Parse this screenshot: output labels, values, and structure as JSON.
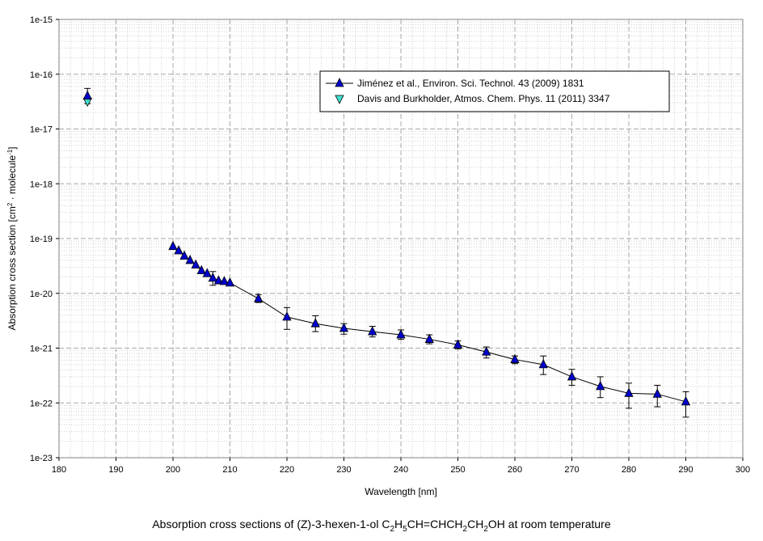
{
  "caption": {
    "prefix": "Absorption cross sections of (Z)-3-hexen-1-ol C",
    "sub1": "2",
    "p2": "H",
    "sub2": "5",
    "p3": "CH=CHCH",
    "sub3": "2",
    "p4": "CH",
    "sub4": "2",
    "p5": "OH at room temperature"
  },
  "chart_data": {
    "type": "scatter",
    "xlabel": "Wavelength [nm]",
    "ylabel_parts": [
      "Absorption cross section [cm",
      "2",
      " · molecule",
      "-1",
      "]"
    ],
    "xlim": [
      180,
      300
    ],
    "ylim": [
      1e-23,
      1e-15
    ],
    "yscale": "log",
    "grid": true,
    "legend_position": "top-right",
    "x_ticks": [
      "180",
      "190",
      "200",
      "210",
      "220",
      "230",
      "240",
      "250",
      "260",
      "270",
      "280",
      "290",
      "300"
    ],
    "y_ticks": [
      "1e-23",
      "1e-22",
      "1e-21",
      "1e-20",
      "1e-19",
      "1e-18",
      "1e-17",
      "1e-16",
      "1e-15"
    ],
    "series": [
      {
        "name": "Jiménez et al., Environ. Sci. Technol. 43 (2009) 1831",
        "marker": "triangle-up",
        "color": "#0000cc",
        "connected": true,
        "x": [
          185,
          200,
          201,
          202,
          203,
          204,
          205,
          206,
          207,
          208,
          209,
          210,
          215,
          220,
          225,
          230,
          235,
          240,
          245,
          250,
          255,
          260,
          265,
          270,
          275,
          280,
          285,
          290
        ],
        "y": [
          4e-17,
          7.2e-20,
          6e-20,
          4.8e-20,
          4e-20,
          3.3e-20,
          2.6e-20,
          2.3e-20,
          1.9e-20,
          1.7e-20,
          1.65e-20,
          1.55e-20,
          8e-21,
          3.7e-21,
          2.8e-21,
          2.3e-21,
          2e-21,
          1.75e-21,
          1.45e-21,
          1.15e-21,
          8.5e-22,
          6.2e-22,
          5e-22,
          3e-22,
          2e-22,
          1.5e-22,
          1.45e-22,
          1.05e-22
        ],
        "error_low": [
          2.9e-17,
          null,
          null,
          null,
          null,
          null,
          null,
          null,
          1.4e-20,
          null,
          null,
          null,
          6.8e-21,
          2.2e-21,
          2e-21,
          1.8e-21,
          1.6e-21,
          1.45e-21,
          1.2e-21,
          9.7e-22,
          6.6e-22,
          5.2e-22,
          3.3e-22,
          2.1e-22,
          1.25e-22,
          8e-23,
          8.5e-23,
          5.5e-23
        ],
        "error_high": [
          5.5e-17,
          null,
          null,
          null,
          null,
          null,
          null,
          null,
          2.5e-20,
          null,
          null,
          null,
          9.5e-21,
          5.5e-21,
          3.9e-21,
          2.8e-21,
          2.5e-21,
          2.15e-21,
          1.75e-21,
          1.35e-21,
          1.05e-21,
          7.2e-22,
          7.2e-22,
          4.1e-22,
          3e-22,
          2.3e-22,
          2.1e-22,
          1.6e-22
        ]
      },
      {
        "name": "Davis and Burkholder, Atmos. Chem. Phys. 11 (2011) 3347",
        "marker": "triangle-down",
        "color": "#40e0d0",
        "connected": false,
        "x": [
          185
        ],
        "y": [
          3.2e-17
        ]
      }
    ]
  }
}
